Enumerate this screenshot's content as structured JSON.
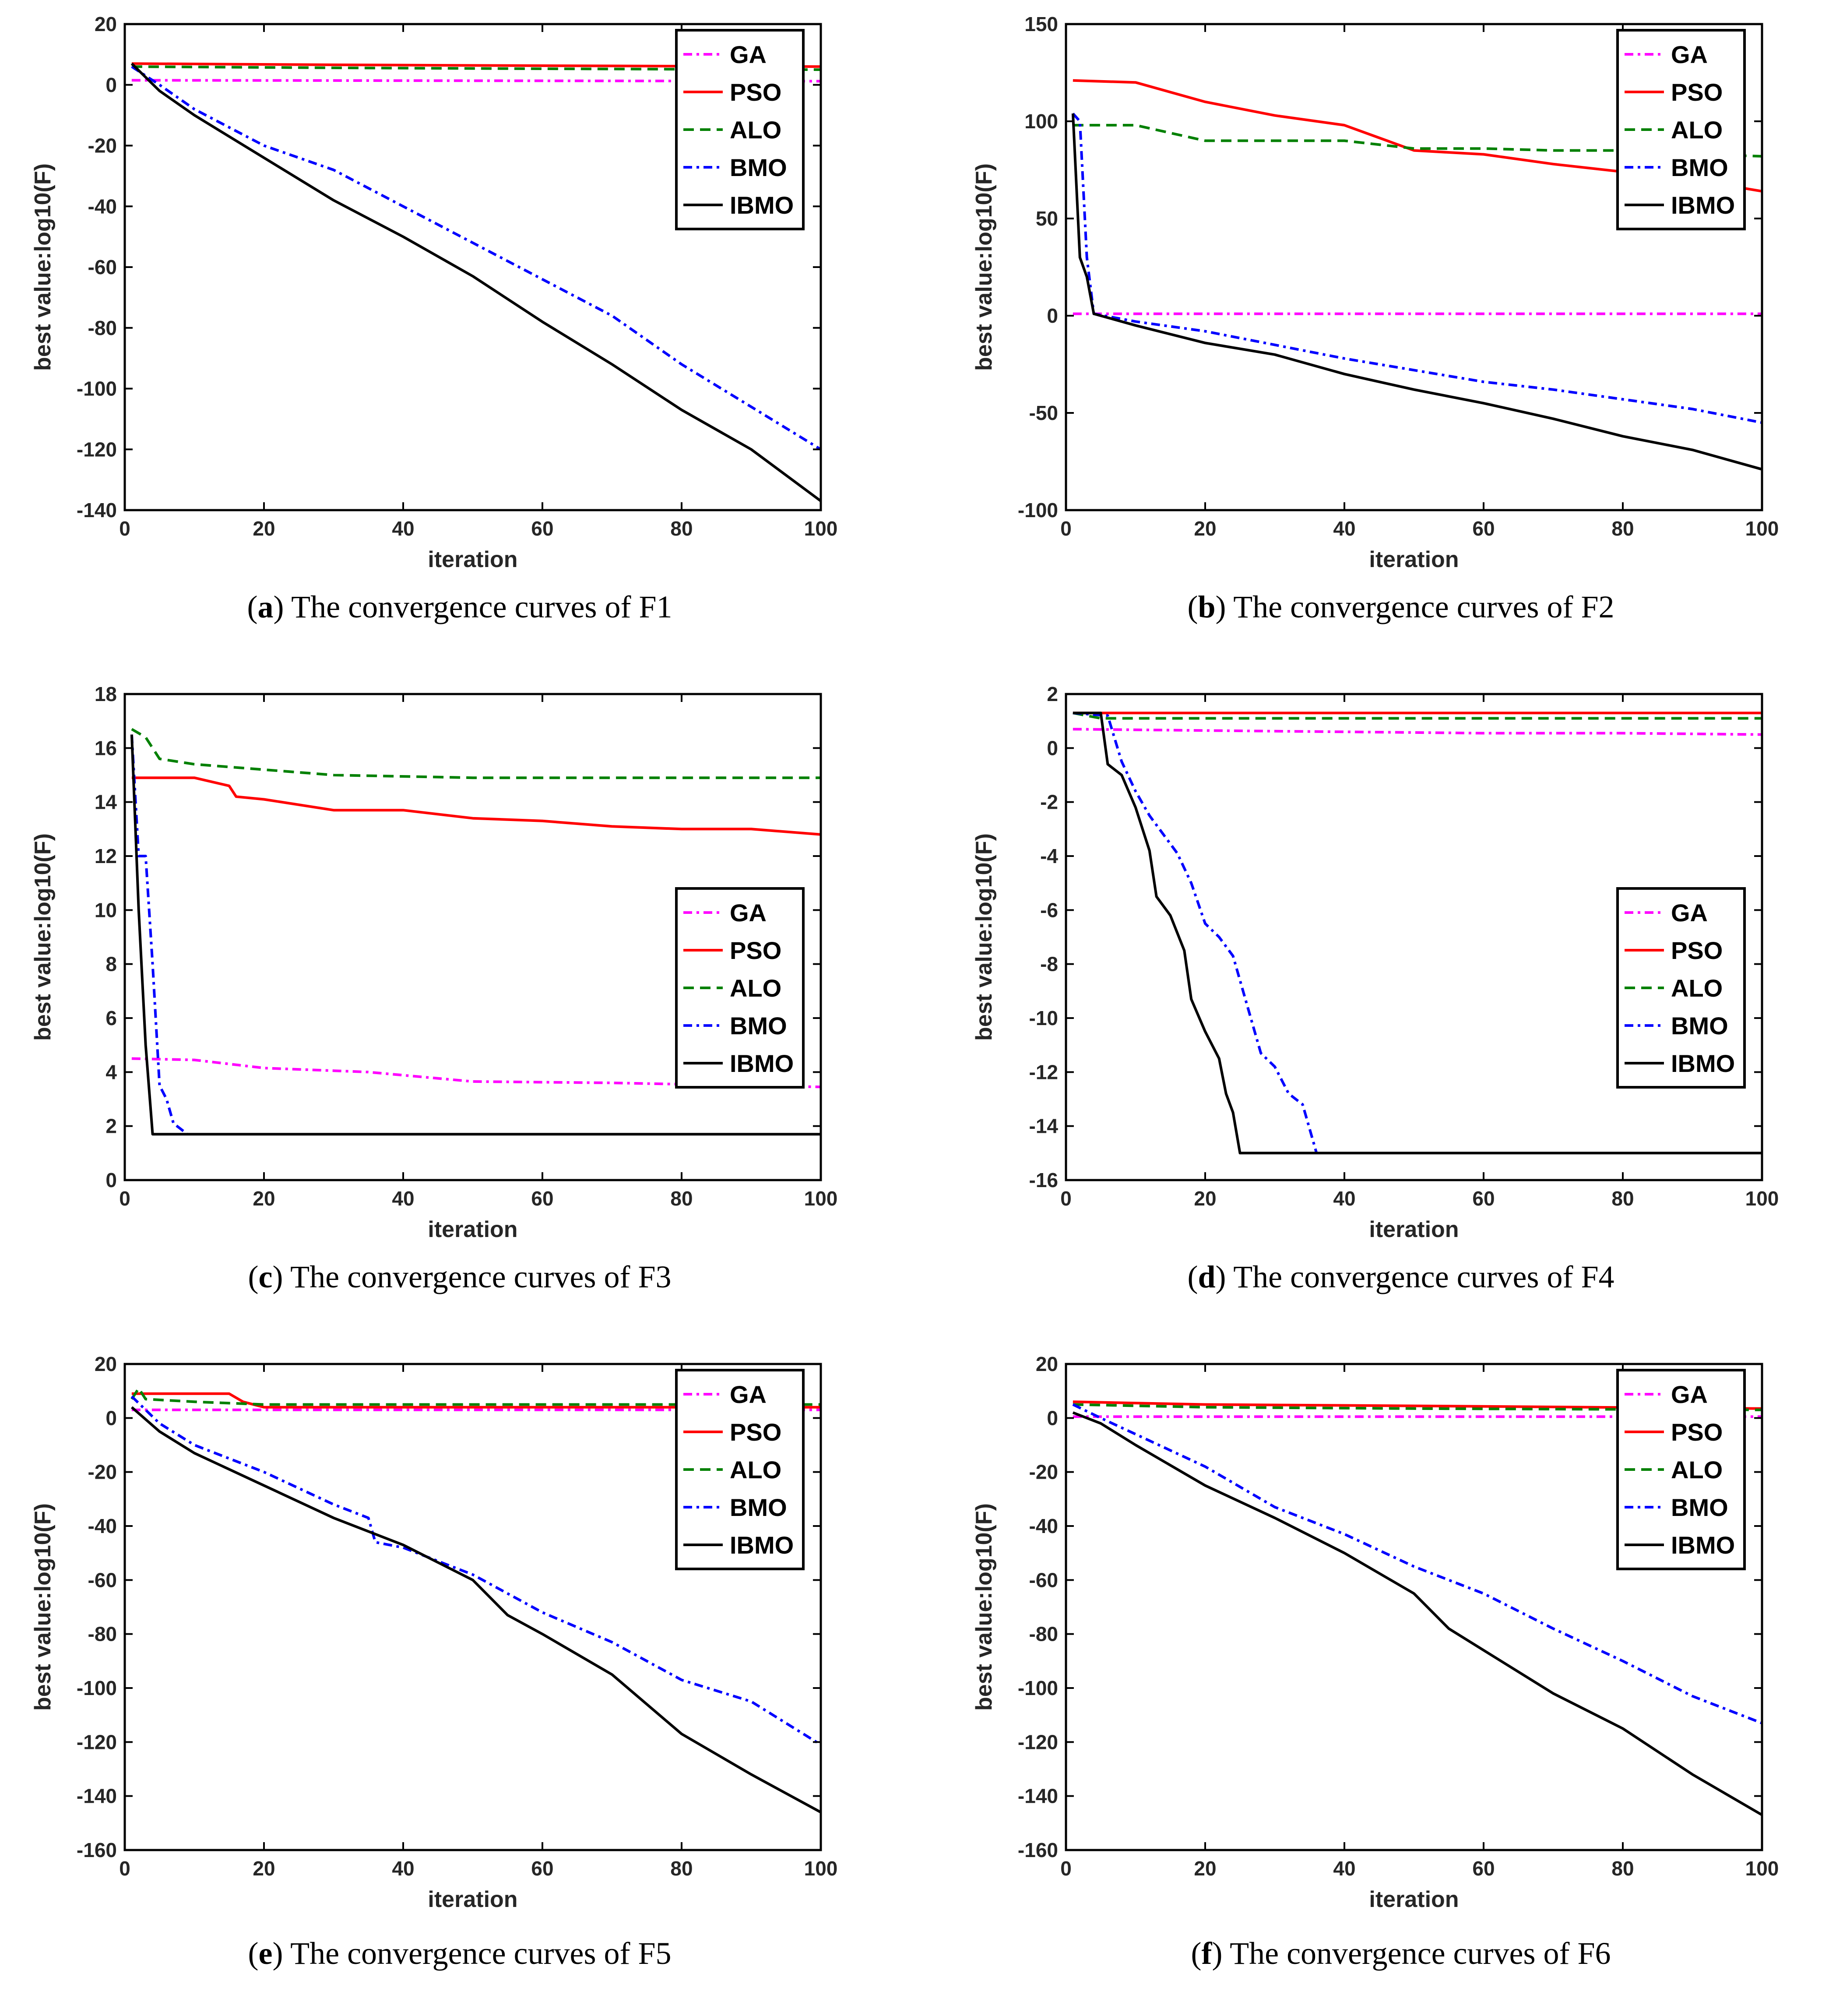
{
  "series_styles": {
    "GA": {
      "color": "#ff00ff",
      "dash": "20,10,6,10"
    },
    "PSO": {
      "color": "#ff0000",
      "dash": ""
    },
    "ALO": {
      "color": "#008000",
      "dash": "24,14"
    },
    "BMO": {
      "color": "#0000ff",
      "dash": "20,10,6,10"
    },
    "IBMO": {
      "color": "#000000",
      "dash": ""
    }
  },
  "chart_data": [
    {
      "id": "a",
      "type": "line",
      "caption_letter": "a",
      "caption_text": "The convergence curves of F1",
      "title": "",
      "xlabel": "iteration",
      "ylabel": "best value:log10(F)",
      "xlim": [
        0,
        100
      ],
      "ylim": [
        -140,
        20
      ],
      "xticks": [
        0,
        20,
        40,
        60,
        80,
        100
      ],
      "yticks": [
        -140,
        -120,
        -100,
        -80,
        -60,
        -40,
        -20,
        0,
        20
      ],
      "legend_position": "top-right",
      "series": [
        {
          "name": "GA",
          "x": [
            1,
            100
          ],
          "y": [
            1.5,
            1.2
          ]
        },
        {
          "name": "PSO",
          "x": [
            1,
            30,
            60,
            100
          ],
          "y": [
            7,
            6.6,
            6.3,
            6
          ]
        },
        {
          "name": "ALO",
          "x": [
            1,
            30,
            60,
            100
          ],
          "y": [
            6,
            5.6,
            5.3,
            5
          ]
        },
        {
          "name": "BMO",
          "x": [
            1,
            5,
            10,
            20,
            30,
            40,
            50,
            60,
            70,
            80,
            90,
            100
          ],
          "y": [
            6,
            0,
            -8,
            -20,
            -28,
            -40,
            -52,
            -64,
            -76,
            -92,
            -106,
            -120
          ]
        },
        {
          "name": "IBMO",
          "x": [
            1,
            5,
            10,
            20,
            30,
            40,
            50,
            60,
            70,
            80,
            90,
            100
          ],
          "y": [
            7,
            -2,
            -10,
            -24,
            -38,
            -50,
            -63,
            -78,
            -92,
            -107,
            -120,
            -137
          ]
        }
      ]
    },
    {
      "id": "b",
      "type": "line",
      "caption_letter": "b",
      "caption_text": "The convergence curves of F2",
      "title": "",
      "xlabel": "iteration",
      "ylabel": "best value:log10(F)",
      "xlim": [
        0,
        100
      ],
      "ylim": [
        -100,
        150
      ],
      "xticks": [
        0,
        20,
        40,
        60,
        80,
        100
      ],
      "yticks": [
        -100,
        -50,
        0,
        50,
        100,
        150
      ],
      "legend_position": "top-right",
      "series": [
        {
          "name": "GA",
          "x": [
            1,
            100
          ],
          "y": [
            1,
            1
          ]
        },
        {
          "name": "PSO",
          "x": [
            1,
            10,
            20,
            30,
            40,
            50,
            60,
            70,
            80,
            90,
            100
          ],
          "y": [
            121,
            120,
            110,
            103,
            98,
            85,
            83,
            78,
            74,
            70,
            64
          ]
        },
        {
          "name": "ALO",
          "x": [
            1,
            10,
            20,
            30,
            40,
            50,
            60,
            70,
            80,
            90,
            100
          ],
          "y": [
            98,
            98,
            90,
            90,
            90,
            86,
            86,
            85,
            85,
            83,
            82
          ]
        },
        {
          "name": "BMO",
          "x": [
            1,
            2,
            3,
            4,
            10,
            20,
            30,
            40,
            50,
            60,
            70,
            80,
            90,
            100
          ],
          "y": [
            104,
            100,
            30,
            1,
            -3,
            -8,
            -15,
            -22,
            -28,
            -34,
            -38,
            -43,
            -48,
            -55
          ]
        },
        {
          "name": "IBMO",
          "x": [
            1,
            2,
            3,
            4,
            10,
            20,
            30,
            40,
            50,
            60,
            70,
            80,
            90,
            100
          ],
          "y": [
            104,
            30,
            20,
            1,
            -5,
            -14,
            -20,
            -30,
            -38,
            -45,
            -53,
            -62,
            -69,
            -79
          ]
        }
      ]
    },
    {
      "id": "c",
      "type": "line",
      "caption_letter": "c",
      "caption_text": "The convergence curves of F3",
      "title": "",
      "xlabel": "iteration",
      "ylabel": "best value:log10(F)",
      "xlim": [
        0,
        100
      ],
      "ylim": [
        0,
        18
      ],
      "xticks": [
        0,
        20,
        40,
        60,
        80,
        100
      ],
      "yticks": [
        0,
        2,
        4,
        6,
        8,
        10,
        12,
        14,
        16,
        18
      ],
      "legend_position": "center-right",
      "series": [
        {
          "name": "GA",
          "x": [
            1,
            10,
            20,
            35,
            50,
            70,
            100
          ],
          "y": [
            4.5,
            4.45,
            4.15,
            4.0,
            3.65,
            3.6,
            3.45
          ]
        },
        {
          "name": "PSO",
          "x": [
            1,
            10,
            15,
            16,
            20,
            30,
            40,
            50,
            60,
            70,
            80,
            90,
            100
          ],
          "y": [
            14.9,
            14.9,
            14.6,
            14.2,
            14.1,
            13.7,
            13.7,
            13.4,
            13.3,
            13.1,
            13.0,
            13.0,
            12.8
          ]
        },
        {
          "name": "ALO",
          "x": [
            1,
            3,
            5,
            10,
            20,
            30,
            40,
            50,
            60,
            70,
            100
          ],
          "y": [
            16.7,
            16.4,
            15.6,
            15.4,
            15.2,
            15.0,
            14.95,
            14.9,
            14.9,
            14.9,
            14.9
          ]
        },
        {
          "name": "BMO",
          "x": [
            1,
            2,
            3,
            4,
            5,
            6,
            7,
            8,
            9
          ],
          "y": [
            16.5,
            12,
            12,
            8,
            3.5,
            3,
            2.1,
            1.9,
            1.7
          ]
        },
        {
          "name": "IBMO",
          "x": [
            1,
            2,
            3,
            4,
            100
          ],
          "y": [
            16.5,
            10,
            5,
            1.7,
            1.7
          ]
        }
      ]
    },
    {
      "id": "d",
      "type": "line",
      "caption_letter": "d",
      "caption_text": "The convergence curves of F4",
      "title": "",
      "xlabel": "iteration",
      "ylabel": "best value:log10(F)",
      "xlim": [
        0,
        100
      ],
      "ylim": [
        -16,
        2
      ],
      "xticks": [
        0,
        20,
        40,
        60,
        80,
        100
      ],
      "yticks": [
        -16,
        -14,
        -12,
        -10,
        -8,
        -6,
        -4,
        -2,
        0,
        2
      ],
      "legend_position": "center-right",
      "series": [
        {
          "name": "GA",
          "x": [
            1,
            20,
            40,
            60,
            80,
            100
          ],
          "y": [
            0.7,
            0.65,
            0.6,
            0.55,
            0.55,
            0.5
          ]
        },
        {
          "name": "PSO",
          "x": [
            1,
            100
          ],
          "y": [
            1.3,
            1.3
          ]
        },
        {
          "name": "ALO",
          "x": [
            1,
            5,
            100
          ],
          "y": [
            1.3,
            1.1,
            1.1
          ]
        },
        {
          "name": "BMO",
          "x": [
            1,
            6,
            8,
            10,
            12,
            14,
            16,
            18,
            20,
            22,
            24,
            26,
            28,
            30,
            32,
            34,
            36
          ],
          "y": [
            1.3,
            1.2,
            -0.5,
            -1.6,
            -2.5,
            -3.2,
            -3.9,
            -5.0,
            -6.5,
            -7.0,
            -7.7,
            -9.5,
            -11.3,
            -11.8,
            -12.8,
            -13.2,
            -15.0
          ]
        },
        {
          "name": "IBMO",
          "x": [
            1,
            5,
            6,
            8,
            10,
            12,
            13,
            15,
            17,
            18,
            20,
            22,
            23,
            24,
            25,
            100
          ],
          "y": [
            1.3,
            1.3,
            -0.6,
            -1.0,
            -2.2,
            -3.8,
            -5.5,
            -6.2,
            -7.5,
            -9.3,
            -10.5,
            -11.5,
            -12.8,
            -13.5,
            -15.0,
            -15.0
          ]
        }
      ]
    },
    {
      "id": "e",
      "type": "line",
      "caption_letter": "e",
      "caption_text": "The convergence curves of F5",
      "title": "",
      "xlabel": "iteration",
      "ylabel": "best value:log10(F)",
      "xlim": [
        0,
        100
      ],
      "ylim": [
        -160,
        20
      ],
      "xticks": [
        0,
        20,
        40,
        60,
        80,
        100
      ],
      "yticks": [
        -160,
        -140,
        -120,
        -100,
        -80,
        -60,
        -40,
        -20,
        0,
        20
      ],
      "legend_position": "top-right",
      "series": [
        {
          "name": "GA",
          "x": [
            1,
            100
          ],
          "y": [
            3,
            3
          ]
        },
        {
          "name": "PSO",
          "x": [
            1,
            15,
            17,
            20,
            40,
            60,
            100
          ],
          "y": [
            9,
            9,
            6,
            4,
            4,
            4,
            4
          ]
        },
        {
          "name": "ALO",
          "x": [
            1,
            2,
            3,
            10,
            20,
            40,
            60,
            100
          ],
          "y": [
            7,
            11,
            7,
            6,
            5,
            5,
            5,
            5
          ]
        },
        {
          "name": "BMO",
          "x": [
            1,
            5,
            10,
            20,
            30,
            35,
            36,
            40,
            50,
            60,
            70,
            80,
            90,
            100
          ],
          "y": [
            8,
            -2,
            -10,
            -20,
            -32,
            -37,
            -46,
            -48,
            -58,
            -72,
            -83,
            -97,
            -105,
            -121
          ]
        },
        {
          "name": "IBMO",
          "x": [
            1,
            5,
            10,
            20,
            30,
            40,
            50,
            55,
            60,
            70,
            80,
            90,
            100
          ],
          "y": [
            4,
            -5,
            -13,
            -25,
            -37,
            -47,
            -60,
            -73,
            -80,
            -95,
            -117,
            -132,
            -146
          ]
        }
      ]
    },
    {
      "id": "f",
      "type": "line",
      "caption_letter": "f",
      "caption_text": "The convergence curves of F6",
      "title": "",
      "xlabel": "iteration",
      "ylabel": "best value:log10(F)",
      "xlim": [
        0,
        100
      ],
      "ylim": [
        -160,
        20
      ],
      "xticks": [
        0,
        20,
        40,
        60,
        80,
        100
      ],
      "yticks": [
        -160,
        -140,
        -120,
        -100,
        -80,
        -60,
        -40,
        -20,
        0,
        20
      ],
      "legend_position": "top-right",
      "series": [
        {
          "name": "GA",
          "x": [
            1,
            100
          ],
          "y": [
            0.5,
            0.5
          ]
        },
        {
          "name": "PSO",
          "x": [
            1,
            20,
            50,
            100
          ],
          "y": [
            6,
            5,
            4.5,
            3.5
          ]
        },
        {
          "name": "ALO",
          "x": [
            1,
            20,
            50,
            100
          ],
          "y": [
            5,
            4,
            3.5,
            3
          ]
        },
        {
          "name": "BMO",
          "x": [
            1,
            5,
            10,
            20,
            30,
            40,
            50,
            60,
            70,
            80,
            90,
            100
          ],
          "y": [
            5,
            0,
            -6,
            -18,
            -33,
            -43,
            -55,
            -65,
            -78,
            -90,
            -103,
            -113
          ]
        },
        {
          "name": "IBMO",
          "x": [
            1,
            5,
            10,
            20,
            30,
            40,
            50,
            55,
            60,
            70,
            80,
            90,
            100
          ],
          "y": [
            2,
            -2,
            -10,
            -25,
            -37,
            -50,
            -65,
            -78,
            -86,
            -102,
            -115,
            -132,
            -147
          ]
        }
      ]
    }
  ]
}
